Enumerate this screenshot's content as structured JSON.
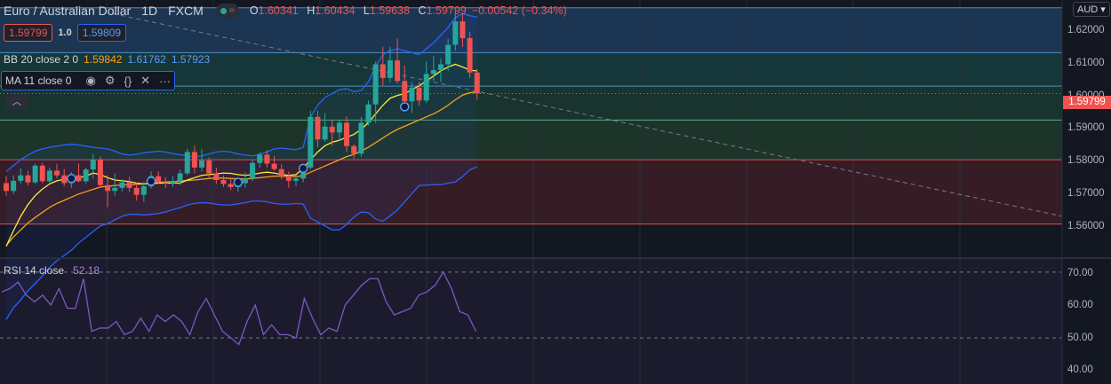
{
  "header": {
    "symbol": "Euro / Australian Dollar",
    "timeframe": "1D",
    "source": "FXCM",
    "ohlc": {
      "o_label": "O",
      "o": "1.60341",
      "h_label": "H",
      "h": "1.60434",
      "l_label": "L",
      "l": "1.59638",
      "c_label": "C",
      "c": "1.59799"
    },
    "change": "−0.00542 (−0.34%)"
  },
  "trade": {
    "sell": "1.59799",
    "qty": "1.0",
    "buy": "1.59809"
  },
  "currency": "AUD",
  "collapse_icon": "chevron-up-icon",
  "indicators": {
    "bb": {
      "label": "BB 20 close 2 0",
      "basis": "1.59842",
      "upper": "1.61762",
      "lower": "1.57923"
    },
    "ma": {
      "label": "MA 11 close 0",
      "icons": [
        "eye-icon",
        "gear-icon",
        "braces-icon",
        "close-icon",
        "more-icon"
      ]
    },
    "rsi": {
      "label": "RSI 14 close",
      "value": "52.18"
    }
  },
  "price_axis": [
    "1.62000",
    "1.61000",
    "1.60000",
    "1.59000",
    "1.58000",
    "1.57000",
    "1.56000"
  ],
  "rsi_axis": [
    "70.00",
    "60.00",
    "50.00",
    "40.00"
  ],
  "last_price": "1.59799",
  "colors": {
    "up": "#26a69a",
    "down": "#ef5350",
    "bb_upper": "#2962ff",
    "bb_basis": "#f7a21b",
    "ma": "#ffeb3b",
    "rsi": "#7e57c2"
  },
  "chart_data": {
    "type": "candlestick",
    "ylim": [
      1.556,
      1.622
    ],
    "zones": [
      {
        "from": 1.6085,
        "to": 1.62,
        "color": "#1f3b5a"
      },
      {
        "from": 1.5999,
        "to": 1.6085,
        "color": "#183d3d"
      },
      {
        "from": 1.5912,
        "to": 1.5999,
        "color": "#1a3a2e"
      },
      {
        "from": 1.581,
        "to": 1.5912,
        "color": "#203a2c"
      },
      {
        "from": 1.5645,
        "to": 1.581,
        "color": "#3d1f26"
      }
    ],
    "levels": [
      1.62,
      1.6085,
      1.5999,
      1.5912,
      1.581,
      1.5645
    ],
    "trendline": {
      "start": [
        0,
        1.62
      ],
      "end": [
        199,
        1.5665
      ]
    },
    "candles": [
      [
        1.575,
        1.5768,
        1.5718,
        1.573
      ],
      [
        1.573,
        1.577,
        1.5722,
        1.5756
      ],
      [
        1.5756,
        1.5788,
        1.5748,
        1.577
      ],
      [
        1.577,
        1.5782,
        1.5744,
        1.5752
      ],
      [
        1.5752,
        1.58,
        1.5748,
        1.5795
      ],
      [
        1.5795,
        1.5802,
        1.575,
        1.5755
      ],
      [
        1.5755,
        1.579,
        1.5748,
        1.5782
      ],
      [
        1.5782,
        1.58,
        1.5762,
        1.577
      ],
      [
        1.577,
        1.5786,
        1.5742,
        1.575
      ],
      [
        1.575,
        1.5778,
        1.5738,
        1.577
      ],
      [
        1.577,
        1.58,
        1.5752,
        1.5755
      ],
      [
        1.5755,
        1.579,
        1.5748,
        1.5785
      ],
      [
        1.5785,
        1.5825,
        1.5762,
        1.581
      ],
      [
        1.581,
        1.5818,
        1.5738,
        1.5745
      ],
      [
        1.5745,
        1.577,
        1.5688,
        1.573
      ],
      [
        1.573,
        1.5775,
        1.5718,
        1.5738
      ],
      [
        1.5738,
        1.576,
        1.5728,
        1.5752
      ],
      [
        1.5752,
        1.5766,
        1.5728,
        1.5738
      ],
      [
        1.5738,
        1.5752,
        1.5705,
        1.572
      ],
      [
        1.572,
        1.5752,
        1.5702,
        1.5742
      ],
      [
        1.5742,
        1.578,
        1.5736,
        1.5768
      ],
      [
        1.5768,
        1.578,
        1.5748,
        1.5752
      ],
      [
        1.5752,
        1.5765,
        1.5738,
        1.575
      ],
      [
        1.575,
        1.5768,
        1.574,
        1.5755
      ],
      [
        1.5755,
        1.5785,
        1.5745,
        1.5775
      ],
      [
        1.5775,
        1.5838,
        1.577,
        1.583
      ],
      [
        1.583,
        1.5846,
        1.5775,
        1.579
      ],
      [
        1.579,
        1.5838,
        1.578,
        1.5808
      ],
      [
        1.5808,
        1.5816,
        1.576,
        1.5775
      ],
      [
        1.5775,
        1.579,
        1.5748,
        1.5758
      ],
      [
        1.5758,
        1.577,
        1.574,
        1.5748
      ],
      [
        1.5748,
        1.5762,
        1.5732,
        1.574
      ],
      [
        1.574,
        1.576,
        1.5728,
        1.575
      ],
      [
        1.575,
        1.5778,
        1.5738,
        1.5762
      ],
      [
        1.5762,
        1.581,
        1.5755,
        1.5802
      ],
      [
        1.5802,
        1.583,
        1.579,
        1.5823
      ],
      [
        1.5823,
        1.5835,
        1.579,
        1.58
      ],
      [
        1.58,
        1.582,
        1.5782,
        1.5786
      ],
      [
        1.5786,
        1.5798,
        1.576,
        1.5768
      ],
      [
        1.5768,
        1.578,
        1.5738,
        1.5756
      ],
      [
        1.5756,
        1.577,
        1.5742,
        1.5762
      ],
      [
        1.5762,
        1.58,
        1.5752,
        1.579
      ],
      [
        1.579,
        1.5936,
        1.5785,
        1.592
      ],
      [
        1.592,
        1.5936,
        1.5842,
        1.5862
      ],
      [
        1.5862,
        1.593,
        1.5856,
        1.5895
      ],
      [
        1.5895,
        1.5912,
        1.5846,
        1.588
      ],
      [
        1.588,
        1.5912,
        1.586,
        1.5905
      ],
      [
        1.5905,
        1.5922,
        1.583,
        1.5845
      ],
      [
        1.5845,
        1.585,
        1.5812,
        1.5826
      ],
      [
        1.5826,
        1.592,
        1.5818,
        1.5905
      ],
      [
        1.5905,
        1.5962,
        1.5898,
        1.5952
      ],
      [
        1.5952,
        1.6062,
        1.5905,
        1.6055
      ],
      [
        1.6055,
        1.61,
        1.6,
        1.602
      ],
      [
        1.602,
        1.61,
        1.6008,
        1.6065
      ],
      [
        1.6065,
        1.6122,
        1.6005,
        1.6012
      ],
      [
        1.6012,
        1.6052,
        1.595,
        1.596
      ],
      [
        1.596,
        1.601,
        1.593,
        1.5995
      ],
      [
        1.5995,
        1.601,
        1.5948,
        1.5962
      ],
      [
        1.5962,
        1.6062,
        1.5955,
        1.603
      ],
      [
        1.603,
        1.6076,
        1.6012,
        1.604
      ],
      [
        1.604,
        1.607,
        1.601,
        1.6055
      ],
      [
        1.6055,
        1.612,
        1.6038,
        1.6105
      ],
      [
        1.6105,
        1.6192,
        1.609,
        1.6165
      ],
      [
        1.6165,
        1.6185,
        1.61,
        1.6122
      ],
      [
        1.6122,
        1.6138,
        1.602,
        1.6034
      ],
      [
        1.6034,
        1.6043,
        1.5964,
        1.598
      ]
    ],
    "bb_upper": [
      1.578,
      1.5795,
      1.581,
      1.5822,
      1.5832,
      1.5838,
      1.5842,
      1.5845,
      1.5848,
      1.585,
      1.5848,
      1.5845,
      1.5842,
      1.584,
      1.5838,
      1.5832,
      1.5825,
      1.5822,
      1.5824,
      1.5828,
      1.583,
      1.5832,
      1.583,
      1.5826,
      1.5823,
      1.582,
      1.5818,
      1.582,
      1.5825,
      1.583,
      1.5832,
      1.583,
      1.5825,
      1.5822,
      1.582,
      1.5824,
      1.583,
      1.5838,
      1.584,
      1.5838,
      1.5836,
      1.5842,
      1.592,
      1.595,
      1.597,
      1.598,
      1.599,
      1.5992,
      1.5985,
      1.5988,
      1.601,
      1.605,
      1.608,
      1.609,
      1.6095,
      1.609,
      1.6085,
      1.608,
      1.6095,
      1.611,
      1.613,
      1.615,
      1.6175,
      1.6185,
      1.618,
      1.6176
    ],
    "bb_basis": [
      1.559,
      1.5612,
      1.563,
      1.5648,
      1.5662,
      1.5675,
      1.5688,
      1.5698,
      1.5706,
      1.5714,
      1.5722,
      1.5728,
      1.5734,
      1.574,
      1.5742,
      1.5744,
      1.5745,
      1.5746,
      1.5747,
      1.5748,
      1.575,
      1.5752,
      1.5753,
      1.5754,
      1.5755,
      1.5757,
      1.5758,
      1.576,
      1.5762,
      1.5763,
      1.5763,
      1.5762,
      1.5761,
      1.5761,
      1.5762,
      1.5764,
      1.5766,
      1.5768,
      1.5768,
      1.5767,
      1.5767,
      1.5769,
      1.5778,
      1.5786,
      1.5794,
      1.5802,
      1.581,
      1.5818,
      1.5824,
      1.5832,
      1.5842,
      1.5854,
      1.5866,
      1.5878,
      1.5888,
      1.5896,
      1.5904,
      1.5912,
      1.592,
      1.5928,
      1.5938,
      1.595,
      1.5964,
      1.5976,
      1.5982,
      1.5984
    ],
    "bb_lower": [
      1.54,
      1.543,
      1.545,
      1.5474,
      1.5492,
      1.5512,
      1.5534,
      1.5551,
      1.5564,
      1.5578,
      1.5596,
      1.5611,
      1.5626,
      1.564,
      1.5646,
      1.5656,
      1.5665,
      1.567,
      1.567,
      1.5668,
      1.567,
      1.5672,
      1.5676,
      1.5682,
      1.5687,
      1.5694,
      1.5698,
      1.57,
      1.5699,
      1.5696,
      1.5694,
      1.5694,
      1.5697,
      1.57,
      1.5704,
      1.5704,
      1.5702,
      1.5698,
      1.5696,
      1.5696,
      1.5698,
      1.5696,
      1.566,
      1.565,
      1.564,
      1.563,
      1.563,
      1.5644,
      1.5663,
      1.5676,
      1.5674,
      1.5658,
      1.5652,
      1.5666,
      1.5681,
      1.5702,
      1.5723,
      1.5744,
      1.5745,
      1.5746,
      1.5746,
      1.575,
      1.5753,
      1.5767,
      1.5784,
      1.5792
    ],
    "ma": [
      1.5588,
      1.5628,
      1.5665,
      1.5695,
      1.5718,
      1.5735,
      1.5748,
      1.5756,
      1.576,
      1.5763,
      1.5764,
      1.5768,
      1.5776,
      1.5772,
      1.5764,
      1.5758,
      1.5756,
      1.5754,
      1.575,
      1.5748,
      1.5748,
      1.575,
      1.575,
      1.575,
      1.575,
      1.5758,
      1.5764,
      1.577,
      1.5772,
      1.5774,
      1.5776,
      1.5775,
      1.5772,
      1.577,
      1.5772,
      1.5776,
      1.5778,
      1.5776,
      1.5772,
      1.577,
      1.5772,
      1.5788,
      1.581,
      1.583,
      1.5846,
      1.5855,
      1.586,
      1.5868,
      1.5875,
      1.5888,
      1.5905,
      1.5928,
      1.595,
      1.5968,
      1.5975,
      1.598,
      1.599,
      1.6,
      1.6012,
      1.6025,
      1.6038,
      1.6048,
      1.6055,
      1.6048,
      1.604,
      1.6038
    ],
    "cross_markers": [
      {
        "i": 9,
        "v": 1.5762
      },
      {
        "i": 20,
        "v": 1.5755
      },
      {
        "i": 32,
        "v": 1.5752
      },
      {
        "i": 41,
        "v": 1.5788
      },
      {
        "i": 55,
        "v": 1.5946
      }
    ],
    "rsi": {
      "ylim": [
        36,
        74
      ],
      "levels": [
        70,
        50
      ],
      "values": [
        64,
        65,
        67,
        63,
        61,
        63,
        60,
        65,
        59,
        59,
        68,
        52,
        53,
        53,
        55,
        51,
        52,
        56,
        52,
        57,
        55,
        57,
        55,
        51,
        58,
        62,
        57,
        52,
        50,
        48,
        55,
        60,
        51,
        54,
        51,
        51,
        50,
        62,
        56,
        51,
        53,
        52,
        60,
        63,
        66,
        68,
        68,
        61,
        57,
        58,
        59,
        63,
        64,
        66,
        70,
        65,
        58,
        57,
        52
      ]
    }
  }
}
